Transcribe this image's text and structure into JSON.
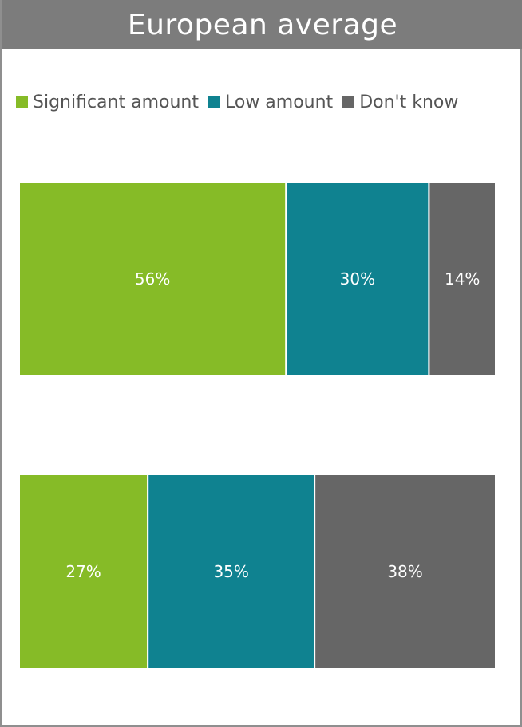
{
  "title": "European average",
  "colors": {
    "significant": "#86bb27",
    "low": "#0f8290",
    "dont_know": "#666666",
    "title_bar": "#7c7c7c"
  },
  "legend": [
    {
      "label": "Significant amount",
      "color": "#86bb27",
      "icon": "square-swatch"
    },
    {
      "label": "Low amount",
      "color": "#0f8290",
      "icon": "square-swatch"
    },
    {
      "label": "Don't know",
      "color": "#666666",
      "icon": "square-swatch"
    }
  ],
  "chart_data": {
    "type": "bar",
    "stacked": true,
    "orientation": "horizontal",
    "unit": "%",
    "title": "European average",
    "categories": [
      "",
      ""
    ],
    "series": [
      {
        "name": "Significant amount",
        "values": [
          56,
          27
        ]
      },
      {
        "name": "Low amount",
        "values": [
          30,
          35
        ]
      },
      {
        "name": "Don't know",
        "values": [
          14,
          38
        ]
      }
    ],
    "data_labels": [
      [
        "56%",
        "30%",
        "14%"
      ],
      [
        "27%",
        "35%",
        "38%"
      ]
    ],
    "xlim": [
      0,
      100
    ],
    "grid": false,
    "legend_position": "top"
  }
}
